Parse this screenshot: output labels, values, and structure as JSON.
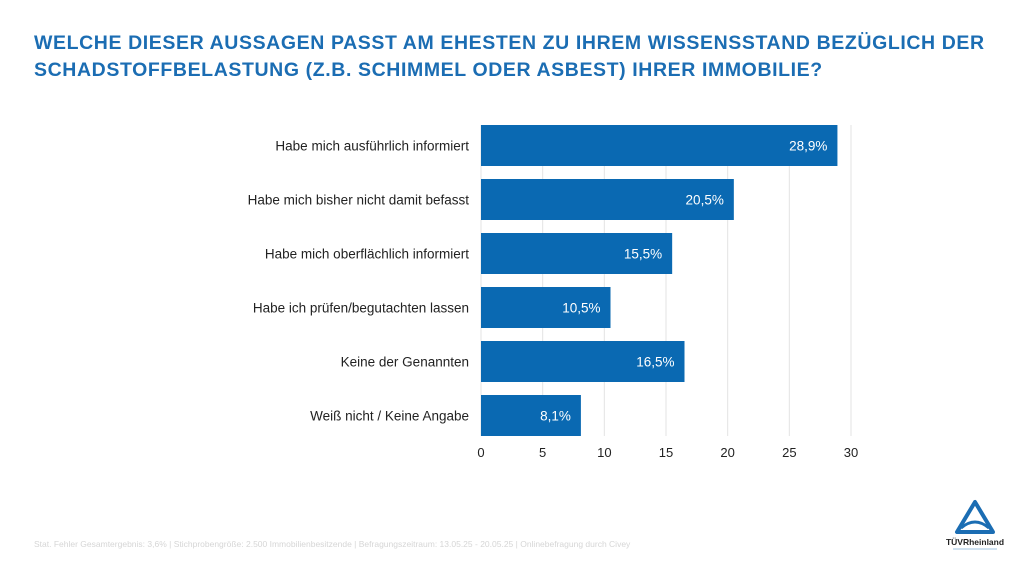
{
  "title": "WELCHE DIESER AUSSAGEN PASST AM EHESTEN ZU IHREM WISSENSSTAND BEZÜGLICH DER SCHADSTOFFBELASTUNG (Z.B. SCHIMMEL ODER ASBEST) IHRER IMMOBILIE?",
  "footer": "Stat. Fehler Gesamtergebnis: 3,6% | Stichprobengröße: 2.500 Immobilienbesitzende | Befragungszeitraum: 13.05.25 - 20.05.25 | Onlinebefragung durch Civey",
  "logo": {
    "text": "TÜVRheinland",
    "color": "#1b6db3"
  },
  "chart_data": {
    "type": "bar",
    "orientation": "horizontal",
    "categories": [
      "Habe mich ausführlich informiert",
      "Habe mich bisher nicht damit befasst",
      "Habe mich oberflächlich informiert",
      "Habe ich prüfen/begutachten lassen",
      "Keine der Genannten",
      "Weiß nicht / Keine Angabe"
    ],
    "values": [
      28.9,
      20.5,
      15.5,
      10.5,
      16.5,
      8.1
    ],
    "labels": [
      "28,9%",
      "20,5%",
      "15,5%",
      "10,5%",
      "16,5%",
      "8,1%"
    ],
    "xlim": [
      0,
      30
    ],
    "xticks": [
      0,
      5,
      10,
      15,
      20,
      25,
      30
    ],
    "grid": true,
    "bar_color": "#0a69b2"
  }
}
